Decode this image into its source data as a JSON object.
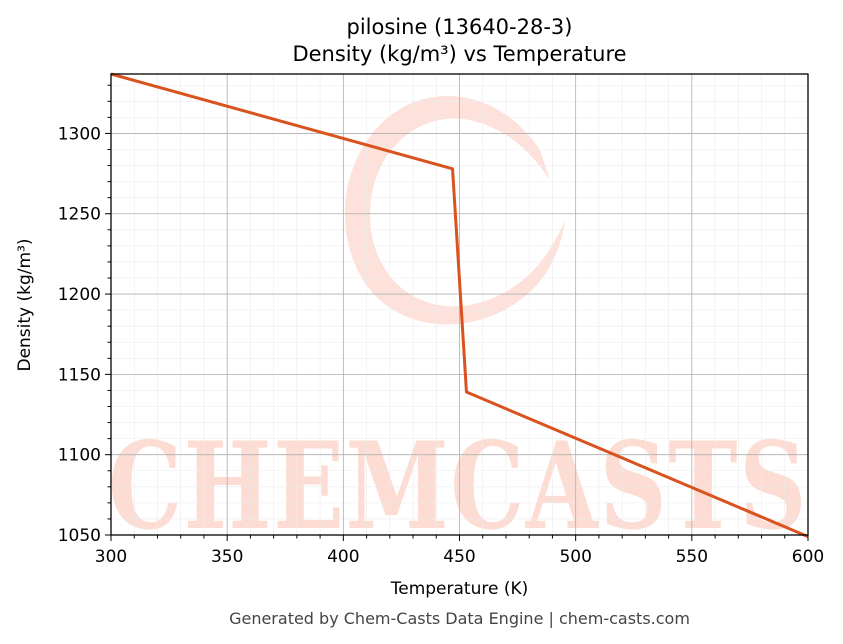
{
  "chart_data": {
    "type": "line",
    "title": "pilosine (13640-28-3)",
    "subtitle": "Density (kg/m³) vs Temperature",
    "xlabel": "Temperature (K)",
    "ylabel": "Density (kg/m³)",
    "xlim": [
      300,
      600
    ],
    "ylim": [
      1050,
      1337
    ],
    "xticks": [
      300,
      350,
      400,
      450,
      500,
      550,
      600
    ],
    "yticks": [
      1050,
      1100,
      1150,
      1200,
      1250,
      1300
    ],
    "grid": true,
    "series": [
      {
        "color": "#d9531e",
        "x": [
          300,
          447,
          453,
          600
        ],
        "y": [
          1337,
          1278,
          1139,
          1049
        ]
      }
    ]
  },
  "footer": "Generated by Chem-Casts Data Engine | chem-casts.com",
  "watermark": "CHEMCASTS",
  "colors": {
    "line": "#d9531e",
    "watermark": "#fddcd3"
  }
}
